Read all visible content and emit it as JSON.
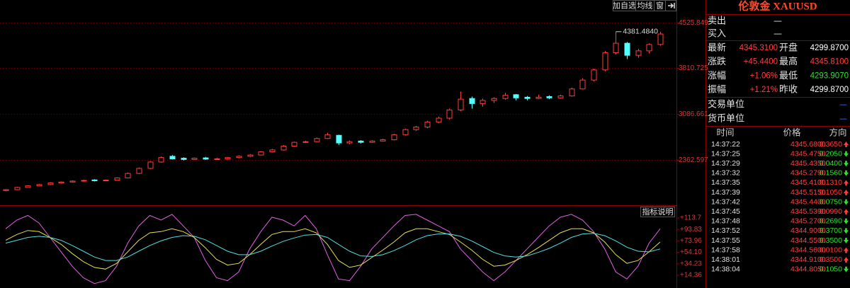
{
  "chart_data": [
    {
      "type": "candlestick",
      "ylim": [
        1650,
        4680
      ],
      "yticks": [
        4525.849,
        3810.725,
        3086.661,
        2362.597
      ],
      "grid": true,
      "up_color": "#ff3c3c",
      "down_color": "#54ffff",
      "annotation": {
        "value": 4381.484,
        "label": "4381.4840"
      },
      "candles": [
        [
          1880,
          1905,
          1870,
          1895
        ],
        [
          1895,
          1940,
          1888,
          1930
        ],
        [
          1930,
          1962,
          1925,
          1955
        ],
        [
          1955,
          1985,
          1948,
          1975
        ],
        [
          1975,
          2010,
          1965,
          2000
        ],
        [
          2000,
          2025,
          1990,
          2015
        ],
        [
          2015,
          2040,
          2008,
          2030
        ],
        [
          2030,
          2052,
          2020,
          2040
        ],
        [
          2048,
          2060,
          2025,
          2035
        ],
        [
          2035,
          2055,
          2028,
          2045
        ],
        [
          2045,
          2090,
          2040,
          2080
        ],
        [
          2080,
          2165,
          2075,
          2150
        ],
        [
          2150,
          2245,
          2140,
          2230
        ],
        [
          2230,
          2345,
          2220,
          2330
        ],
        [
          2330,
          2420,
          2320,
          2400
        ],
        [
          2420,
          2440,
          2370,
          2380
        ],
        [
          2390,
          2405,
          2355,
          2370
        ],
        [
          2370,
          2400,
          2360,
          2390
        ],
        [
          2395,
          2410,
          2365,
          2375
        ],
        [
          2375,
          2395,
          2368,
          2380
        ],
        [
          2380,
          2410,
          2372,
          2400
        ],
        [
          2400,
          2435,
          2390,
          2420
        ],
        [
          2420,
          2455,
          2410,
          2440
        ],
        [
          2440,
          2500,
          2435,
          2490
        ],
        [
          2490,
          2535,
          2480,
          2520
        ],
        [
          2520,
          2595,
          2510,
          2580
        ],
        [
          2580,
          2650,
          2570,
          2640
        ],
        [
          2640,
          2665,
          2630,
          2650
        ],
        [
          2650,
          2715,
          2640,
          2700
        ],
        [
          2700,
          2790,
          2690,
          2760
        ],
        [
          2750,
          2760,
          2600,
          2630
        ],
        [
          2630,
          2670,
          2610,
          2650
        ],
        [
          2660,
          2675,
          2620,
          2640
        ],
        [
          2640,
          2672,
          2630,
          2660
        ],
        [
          2660,
          2695,
          2650,
          2680
        ],
        [
          2680,
          2775,
          2670,
          2760
        ],
        [
          2760,
          2855,
          2750,
          2840
        ],
        [
          2840,
          2900,
          2820,
          2880
        ],
        [
          2880,
          2980,
          2860,
          2960
        ],
        [
          2960,
          3045,
          2940,
          3020
        ],
        [
          3020,
          3170,
          3000,
          3150
        ],
        [
          3150,
          3440,
          3130,
          3320
        ],
        [
          3330,
          3360,
          3170,
          3250
        ],
        [
          3250,
          3330,
          3200,
          3300
        ],
        [
          3300,
          3350,
          3260,
          3330
        ],
        [
          3330,
          3420,
          3310,
          3380
        ],
        [
          3390,
          3400,
          3300,
          3340
        ],
        [
          3350,
          3370,
          3300,
          3330
        ],
        [
          3330,
          3390,
          3320,
          3350
        ],
        [
          3360,
          3380,
          3320,
          3340
        ],
        [
          3340,
          3390,
          3330,
          3370
        ],
        [
          3370,
          3500,
          3360,
          3480
        ],
        [
          3480,
          3650,
          3470,
          3620
        ],
        [
          3620,
          3800,
          3600,
          3780
        ],
        [
          3780,
          4080,
          3760,
          4050
        ],
        [
          4050,
          4381.484,
          4020,
          4200
        ],
        [
          4200,
          4220,
          3950,
          4010
        ],
        [
          4010,
          4110,
          3970,
          4080
        ],
        [
          4080,
          4200,
          4040,
          4180
        ],
        [
          4180,
          4380,
          4160,
          4345.31
        ]
      ]
    },
    {
      "type": "line",
      "ylim": [
        -5.3,
        134.6
      ],
      "yticks": [
        {
          "value": 113.7,
          "label": "+113.7"
        },
        {
          "value": 93.83,
          "label": "+93.83"
        },
        {
          "value": 73.96,
          "label": "+73.96"
        },
        {
          "value": 54.1,
          "label": "+54.10"
        },
        {
          "value": 34.23,
          "label": "+34.23"
        },
        {
          "value": 14.36,
          "label": "+14.36"
        }
      ],
      "button": "指标说明",
      "series": [
        {
          "color": "#e060e0",
          "values": [
            95,
            110,
            118,
            105,
            80,
            55,
            30,
            10,
            0,
            5,
            30,
            70,
            100,
            118,
            110,
            120,
            100,
            80,
            40,
            10,
            5,
            20,
            60,
            90,
            115,
            110,
            100,
            118,
            95,
            50,
            8,
            5,
            30,
            60,
            80,
            100,
            118,
            120,
            110,
            100,
            90,
            60,
            40,
            20,
            5,
            20,
            40,
            60,
            80,
            100,
            115,
            120,
            110,
            90,
            60,
            20,
            8,
            30,
            70,
            95
          ]
        },
        {
          "color": "#e8e050",
          "values": [
            75,
            85,
            92,
            90,
            80,
            68,
            52,
            38,
            28,
            25,
            35,
            55,
            75,
            88,
            90,
            95,
            90,
            80,
            62,
            42,
            32,
            35,
            50,
            68,
            85,
            90,
            90,
            95,
            88,
            68,
            40,
            28,
            32,
            45,
            58,
            72,
            88,
            95,
            95,
            90,
            85,
            72,
            58,
            42,
            30,
            32,
            40,
            50,
            62,
            75,
            88,
            95,
            95,
            88,
            72,
            50,
            35,
            40,
            55,
            72
          ]
        },
        {
          "color": "#50e0e0",
          "values": [
            70,
            75,
            80,
            82,
            80,
            75,
            66,
            56,
            46,
            40,
            40,
            46,
            56,
            66,
            74,
            80,
            83,
            82,
            76,
            66,
            56,
            50,
            50,
            56,
            65,
            73,
            79,
            84,
            85,
            80,
            68,
            56,
            48,
            47,
            50,
            57,
            66,
            76,
            83,
            86,
            86,
            82,
            74,
            64,
            54,
            48,
            46,
            48,
            54,
            61,
            70,
            80,
            86,
            87,
            83,
            74,
            63,
            56,
            55,
            60
          ]
        }
      ]
    }
  ],
  "toolbar": [
    "加自选",
    "均线",
    "窗"
  ],
  "panel": {
    "title": "伦敦金 XAUUSD",
    "bid_ask": [
      {
        "label": "卖出",
        "value": "—"
      },
      {
        "label": "买入",
        "value": "—"
      }
    ],
    "stats": [
      {
        "label": "最新",
        "value": "4345.3100",
        "color": "#ff4040",
        "label2": "开盘",
        "value2": "4299.8700",
        "color2": "#ffffff"
      },
      {
        "label": "涨跌",
        "value": "+45.4400",
        "color": "#ff4040",
        "label2": "最高",
        "value2": "4345.8100",
        "color2": "#ff4040"
      },
      {
        "label": "涨幅",
        "value": "+1.06%",
        "color": "#ff4040",
        "label2": "最低",
        "value2": "4293.9070",
        "color2": "#30e030"
      },
      {
        "label": "振幅",
        "value": "+1.21%",
        "color": "#ff4040",
        "label2": "昨收",
        "value2": "4299.8700",
        "color2": "#ffffff"
      }
    ],
    "units": [
      {
        "label": "交易单位",
        "value": "—"
      },
      {
        "label": "货币单位",
        "value": "—"
      }
    ],
    "ticks_header": [
      "时间",
      "价格",
      "方向"
    ],
    "ticks": [
      {
        "time": "14:37:22",
        "price": "4345.6800",
        "change": "0.3650",
        "arrow": "up"
      },
      {
        "time": "14:37:25",
        "price": "4345.4750",
        "change": "0.2050",
        "arrow": "down"
      },
      {
        "time": "14:37:29",
        "price": "4345.4350",
        "change": "0.0400",
        "arrow": "down"
      },
      {
        "time": "14:37:32",
        "price": "4345.2790",
        "change": "0.1560",
        "arrow": "down"
      },
      {
        "time": "14:37:35",
        "price": "4345.4100",
        "change": "0.1310",
        "arrow": "up"
      },
      {
        "time": "14:37:39",
        "price": "4345.5150",
        "change": "0.1050",
        "arrow": "up"
      },
      {
        "time": "14:37:42",
        "price": "4345.4400",
        "change": "0.0750",
        "arrow": "down"
      },
      {
        "time": "14:37:45",
        "price": "4345.5390",
        "change": "0.0990",
        "arrow": "up"
      },
      {
        "time": "14:37:48",
        "price": "4345.2700",
        "change": "0.2690",
        "arrow": "down"
      },
      {
        "time": "14:37:52",
        "price": "4344.9000",
        "change": "0.3700",
        "arrow": "down"
      },
      {
        "time": "14:37:55",
        "price": "4344.5500",
        "change": "0.3500",
        "arrow": "down"
      },
      {
        "time": "14:37:58",
        "price": "4344.5600",
        "change": "0.0100",
        "arrow": "up"
      },
      {
        "time": "14:38:01",
        "price": "4344.9100",
        "change": "0.3500",
        "arrow": "up"
      },
      {
        "time": "14:38:04",
        "price": "4344.8050",
        "change": "0.1050",
        "arrow": "down"
      }
    ]
  }
}
